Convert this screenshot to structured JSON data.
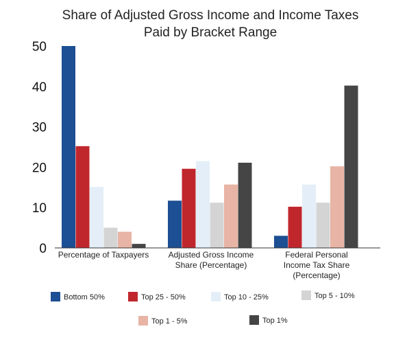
{
  "chart_data": {
    "type": "bar",
    "title": [
      "Share of Adjusted Gross Income and Income Taxes",
      "Paid by Bracket Range"
    ],
    "xlabel": "",
    "ylabel": "",
    "ylim": [
      0,
      50
    ],
    "yticks": [
      "0",
      "10",
      "20",
      "30",
      "40",
      "50"
    ],
    "grid": false,
    "legend_position": "bottom",
    "categories": [
      [
        "Percentage of Taxpayers"
      ],
      [
        "Adjusted Gross Income",
        "Share (Percentage)"
      ],
      [
        "Federal Personal",
        "Income Tax Share",
        "(Percentage)"
      ]
    ],
    "series": [
      {
        "name": "Bottom 50%",
        "color": "#1c4f93",
        "values": [
          50,
          11.7,
          3.0
        ]
      },
      {
        "name": "Top 25 - 50%",
        "color": "#c0272d",
        "values": [
          25.2,
          19.6,
          10.2
        ]
      },
      {
        "name": "Top 10 - 25%",
        "color": "#e3eef8",
        "values": [
          15.1,
          21.5,
          15.7
        ]
      },
      {
        "name": "Top 5 - 10%",
        "color": "#d4d4d4",
        "values": [
          5.0,
          11.2,
          11.2
        ]
      },
      {
        "name": "Top 1 - 5%",
        "color": "#e8b4a5",
        "values": [
          4.0,
          15.7,
          20.2
        ]
      },
      {
        "name": "Top 1%",
        "color": "#454545",
        "values": [
          1.0,
          21.1,
          40.2
        ]
      }
    ]
  }
}
